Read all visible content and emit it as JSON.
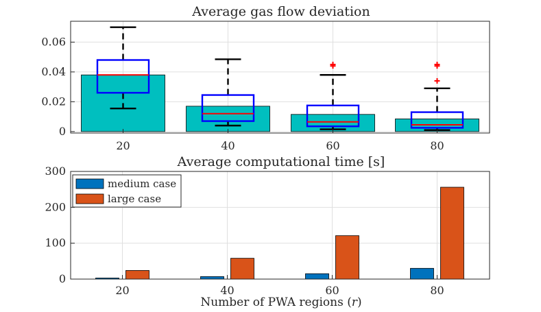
{
  "chart_data": [
    {
      "type": "bar",
      "title": "Average gas flow deviation",
      "xlabel": "",
      "ylabel": "",
      "categories": [
        "20",
        "40",
        "60",
        "80"
      ],
      "x_tick_labels": [
        "20",
        "40",
        "60",
        "80"
      ],
      "y_tick_values": [
        0,
        0.02,
        0.04,
        0.06
      ],
      "y_tick_labels": [
        "0",
        "0.02",
        "0.04",
        "0.06"
      ],
      "ylim": [
        -0.001,
        0.074
      ],
      "grid": true,
      "bar_color": "#00bfbf",
      "values": [
        0.038,
        0.017,
        0.0115,
        0.0085
      ],
      "boxplot": {
        "box_color": "#0000ff",
        "median_color": "#ff0000",
        "whisker_color": "#000000",
        "outlier_color": "#ff0000",
        "q1": [
          0.026,
          0.007,
          0.0035,
          0.0025
        ],
        "median": [
          0.038,
          0.012,
          0.0065,
          0.0045
        ],
        "q3": [
          0.048,
          0.0245,
          0.0175,
          0.013
        ],
        "whisker_low": [
          0.0155,
          0.004,
          0.0015,
          0.001
        ],
        "whisker_high": [
          0.07,
          0.0485,
          0.038,
          0.029
        ],
        "outliers": [
          [],
          [],
          [
            0.044,
            0.045
          ],
          [
            0.034,
            0.044,
            0.045
          ]
        ]
      }
    },
    {
      "type": "bar",
      "title": "Average computational time [s]",
      "xlabel": "Number of PWA regions (r)",
      "ylabel": "",
      "categories": [
        "20",
        "40",
        "60",
        "80"
      ],
      "x_tick_labels": [
        "20",
        "40",
        "60",
        "80"
      ],
      "y_tick_values": [
        0,
        100,
        200,
        300
      ],
      "y_tick_labels": [
        "0",
        "100",
        "200",
        "300"
      ],
      "ylim": [
        0,
        300
      ],
      "grid": true,
      "legend_position": "top-left",
      "series": [
        {
          "name": "medium case",
          "color": "#0072bd",
          "values": [
            3,
            7,
            15,
            30
          ]
        },
        {
          "name": "large case",
          "color": "#d95319",
          "values": [
            24,
            58,
            121,
            256
          ]
        }
      ]
    }
  ]
}
